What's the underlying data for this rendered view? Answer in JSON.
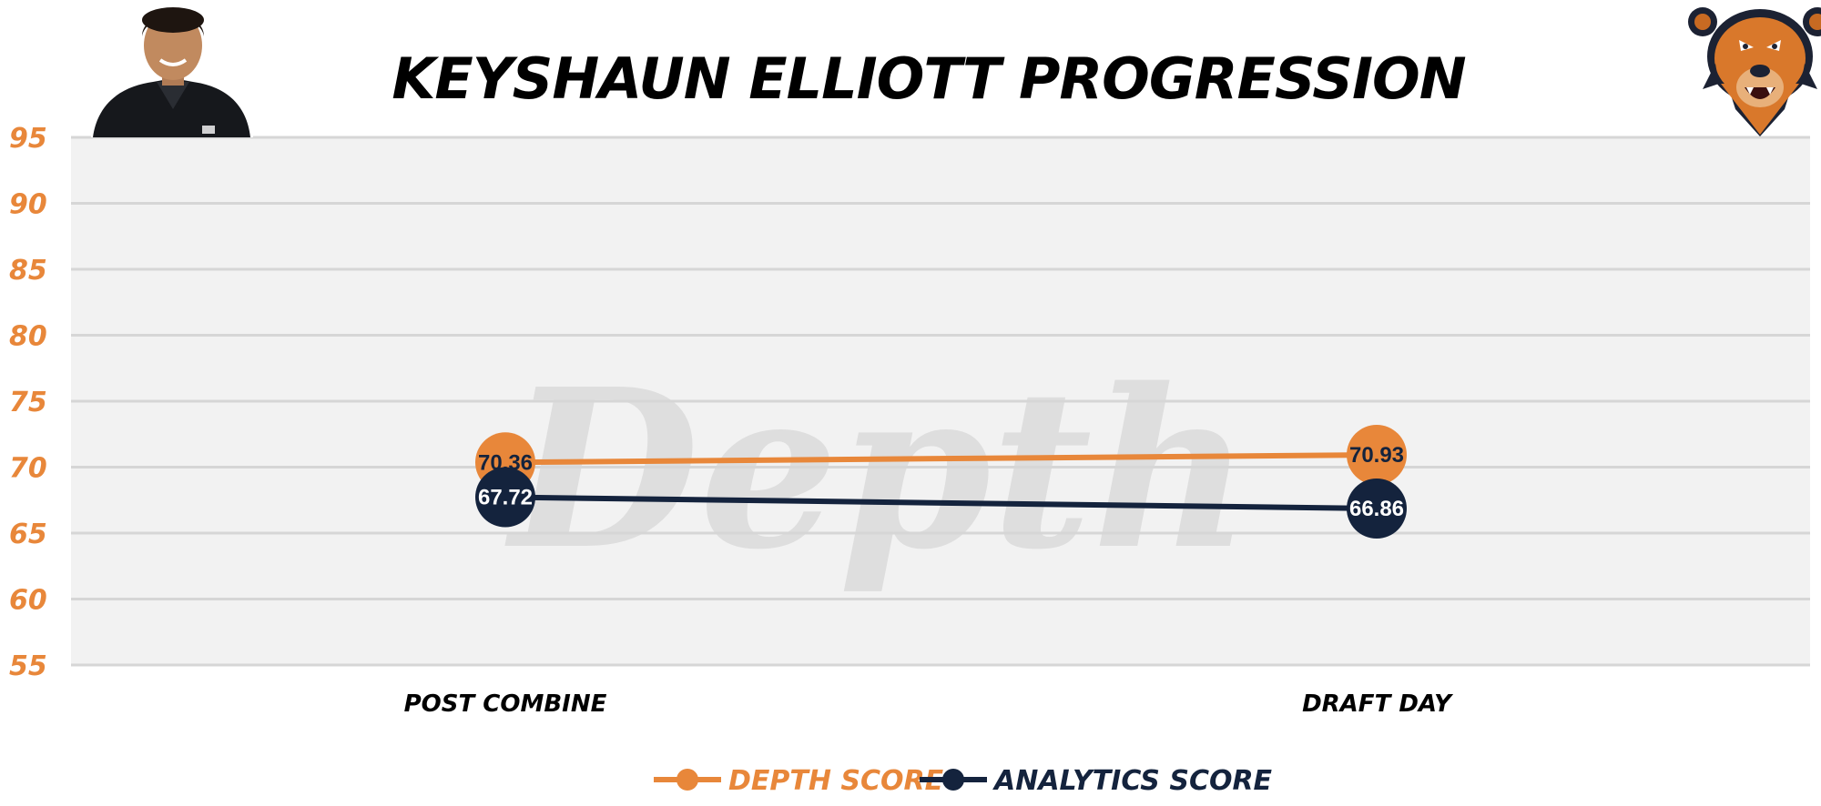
{
  "colors": {
    "depth": "#E8873A",
    "analytics": "#14233D",
    "plot_bg": "#F2F2F2",
    "grid": "#D6D6D6",
    "ytick": "#E8873A",
    "depth_label_text": "#14233D",
    "analytics_label_text": "#FFFFFF"
  },
  "watermark_text": "Depth",
  "icons": {
    "player": "player-headshot-photo",
    "team": "bear-mascot-logo"
  },
  "chart_data": {
    "type": "line",
    "title": "KEYSHAUN ELLIOTT PROGRESSION",
    "xlabel": "",
    "ylabel": "",
    "categories": [
      "POST COMBINE",
      "DRAFT DAY"
    ],
    "ylim": [
      55,
      95
    ],
    "yticks": [
      95,
      90,
      85,
      80,
      75,
      70,
      65,
      60,
      55
    ],
    "grid": true,
    "legend_position": "bottom",
    "series": [
      {
        "name": "DEPTH SCORE",
        "values": [
          70.36,
          70.93
        ],
        "labels": [
          "70.36",
          "70.93"
        ]
      },
      {
        "name": "ANALYTICS SCORE",
        "values": [
          67.72,
          66.86
        ],
        "labels": [
          "67.72",
          "66.86"
        ]
      }
    ]
  }
}
